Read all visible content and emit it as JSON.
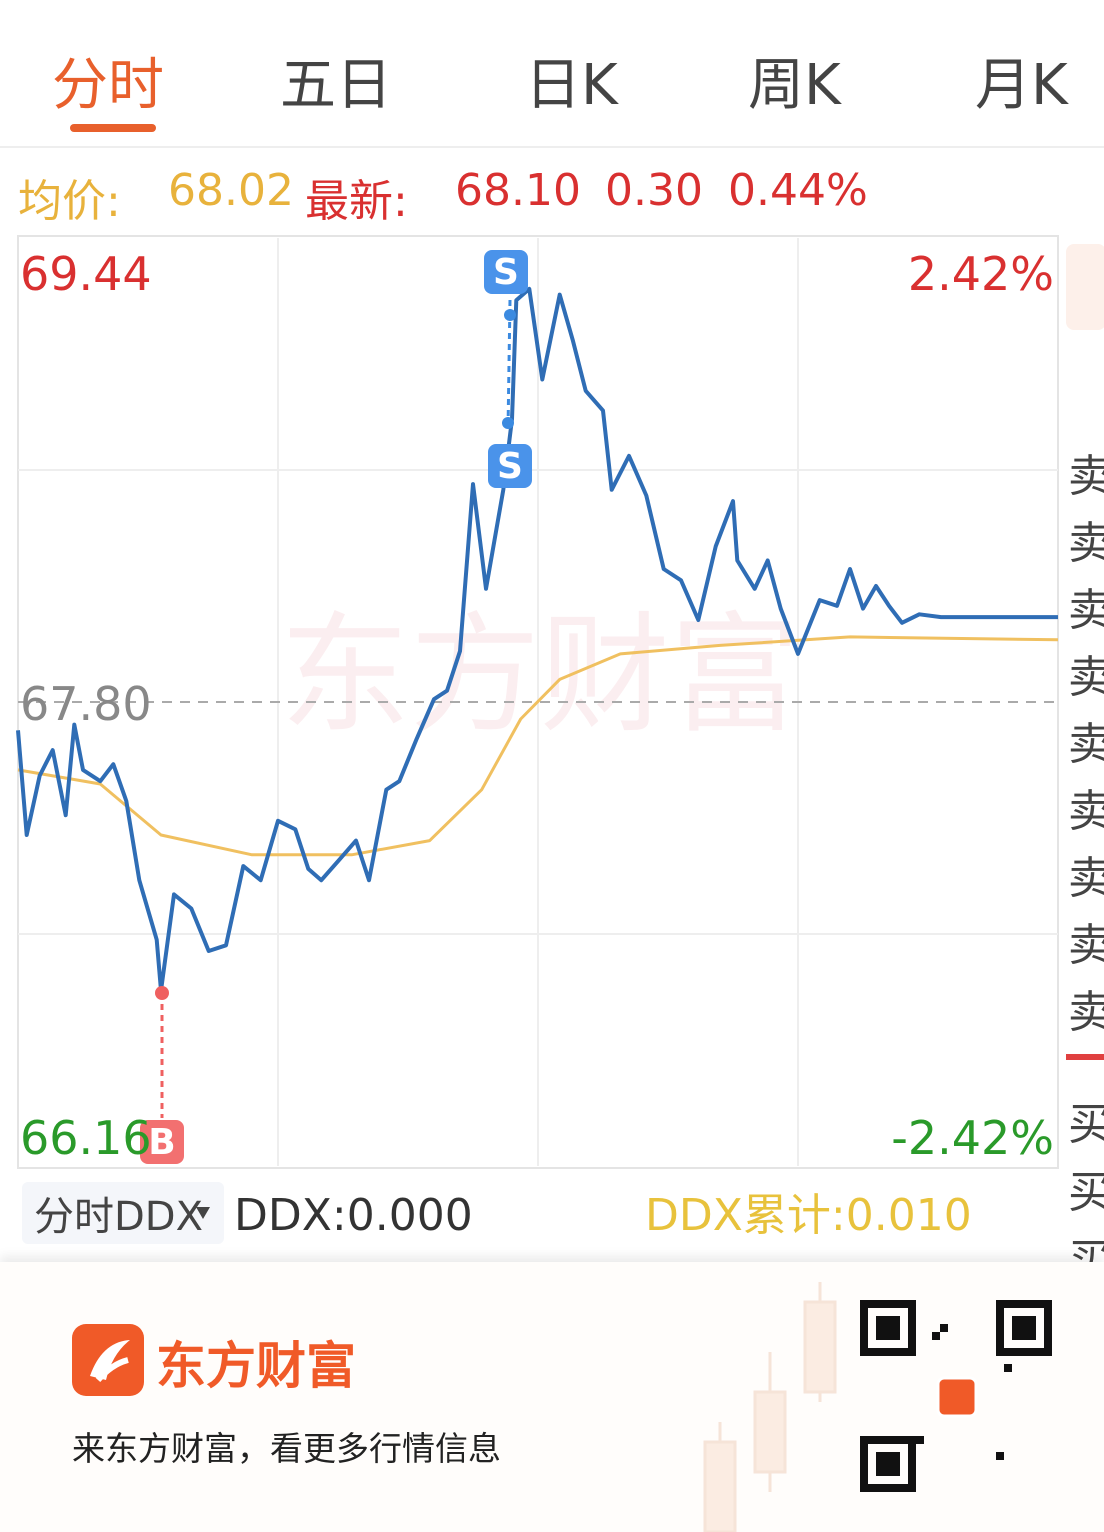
{
  "tabs": [
    "分时",
    "五日",
    "日K",
    "周K",
    "月K"
  ],
  "quote": {
    "avg_label": "均价:",
    "avg": "68.02",
    "last_label": "最新:",
    "last": "68.10",
    "change": "0.30",
    "change_pct": "0.44%"
  },
  "chart_data": {
    "type": "line",
    "ylim": [
      66.16,
      69.44
    ],
    "yticks": [
      69.44,
      {
        "value": 67.8,
        "label": "67.80"
      },
      66.16
    ],
    "y2lim": [
      -2.42,
      2.42
    ],
    "y2ticks": [
      {
        "value": 2.42,
        "label": "2.42%"
      },
      {
        "value": -2.42,
        "label": "-2.42%"
      }
    ],
    "xlim": [
      0,
      240
    ],
    "grid": true,
    "series": [
      {
        "color": "#2f6db5",
        "x": [
          0,
          2,
          5,
          8,
          11,
          13,
          15,
          19,
          22,
          25,
          28,
          32,
          33,
          36,
          40,
          44,
          48,
          52,
          56,
          60,
          64,
          67,
          70,
          74,
          78,
          81,
          85,
          88,
          92,
          96,
          99,
          102,
          105,
          108,
          112,
          114,
          115,
          118,
          121,
          125,
          128,
          131,
          135,
          137,
          141,
          145,
          149,
          153,
          157,
          161,
          165,
          166,
          170,
          173,
          176,
          180,
          185,
          189,
          192,
          195,
          198,
          201,
          204,
          208,
          213,
          218,
          240
        ],
        "values": [
          67.7,
          67.33,
          67.54,
          67.63,
          67.4,
          67.72,
          67.56,
          67.52,
          67.58,
          67.45,
          67.17,
          66.96,
          66.78,
          67.12,
          67.07,
          66.92,
          66.94,
          67.22,
          67.17,
          67.38,
          67.35,
          67.21,
          67.17,
          67.24,
          67.31,
          67.17,
          67.49,
          67.52,
          67.67,
          67.81,
          67.84,
          67.98,
          68.57,
          68.2,
          68.55,
          68.8,
          69.22,
          69.26,
          68.94,
          69.24,
          69.08,
          68.9,
          68.83,
          68.55,
          68.67,
          68.53,
          68.27,
          68.23,
          68.09,
          68.35,
          68.51,
          68.3,
          68.2,
          68.3,
          68.13,
          67.97,
          68.16,
          68.14,
          68.27,
          68.13,
          68.21,
          68.14,
          68.08,
          68.11,
          68.1,
          68.1,
          68.1
        ]
      },
      {
        "color": "#f0c060",
        "x": [
          0,
          19,
          33,
          54,
          77,
          95,
          107,
          116,
          125,
          139,
          162,
          192,
          240
        ],
        "values": [
          67.56,
          67.51,
          67.33,
          67.26,
          67.26,
          67.31,
          67.49,
          67.74,
          67.88,
          67.97,
          68.0,
          68.03,
          68.02
        ]
      }
    ]
  },
  "watermark": "东方财富",
  "ddx": {
    "selector": "分时DDX",
    "ddx": "DDX:0.000",
    "ddx_total": "DDX累计:0.010"
  },
  "side_panel": {
    "sell": [
      "卖",
      "卖",
      "卖",
      "卖",
      "卖",
      "卖",
      "卖",
      "卖",
      "卖"
    ],
    "buy": [
      "买",
      "买",
      "买"
    ]
  },
  "footer": {
    "brand": "东方财富",
    "slogan": "来东方财富，看更多行情信息"
  }
}
